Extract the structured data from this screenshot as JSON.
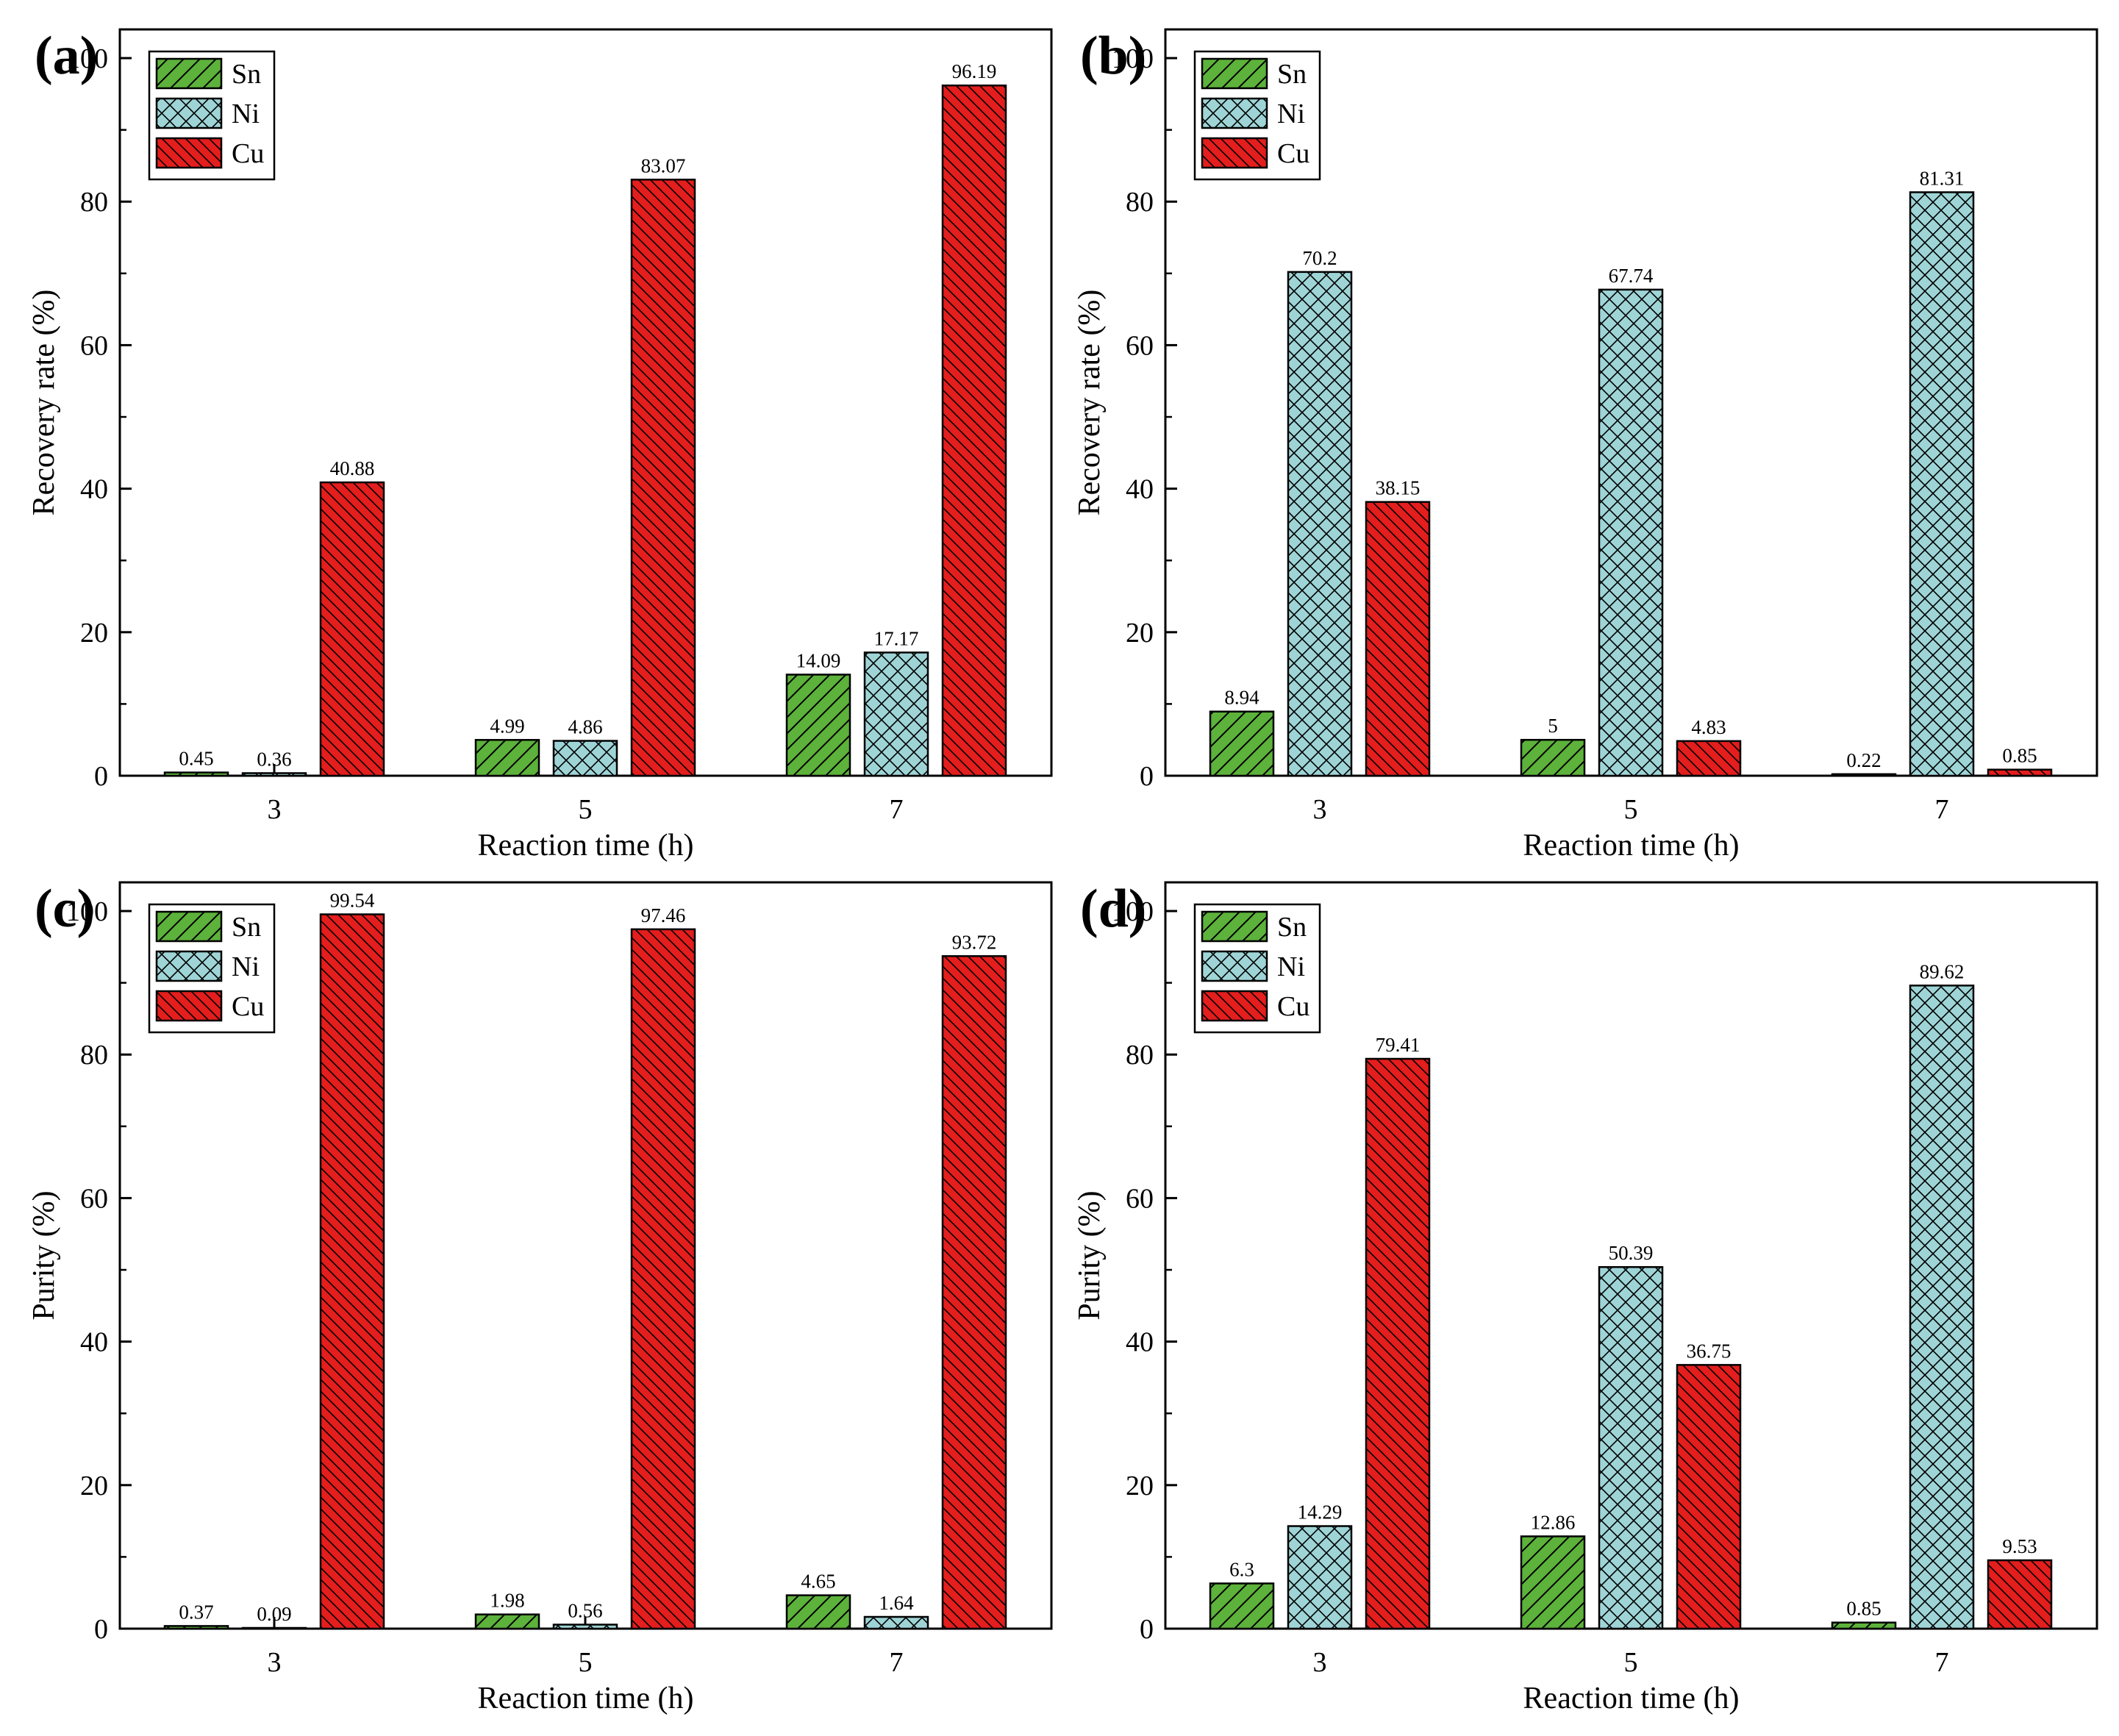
{
  "colors": {
    "Sn": "#5cb23b",
    "Ni": "#9fd4d6",
    "Cu": "#e41d1d",
    "hatch": "#000000"
  },
  "chart_data": [
    {
      "type": "bar",
      "panel_label": "(a)",
      "categories": [
        "3",
        "5",
        "7"
      ],
      "xlabel": "Reaction time (h)",
      "ylabel": "Recovery rate (%)",
      "ylim": [
        0,
        104
      ],
      "yticks": [
        0,
        20,
        40,
        60,
        80,
        100
      ],
      "legend_position": "top-left",
      "series": [
        {
          "name": "Sn",
          "values": [
            0.45,
            4.99,
            14.09
          ],
          "labels": [
            "0.45",
            "4.99",
            "14.09"
          ]
        },
        {
          "name": "Ni",
          "values": [
            0.36,
            4.86,
            17.17
          ],
          "labels": [
            "0.36",
            "4.86",
            "17.17"
          ]
        },
        {
          "name": "Cu",
          "values": [
            40.88,
            83.07,
            96.19
          ],
          "labels": [
            "40.88",
            "83.07",
            "96.19"
          ]
        }
      ]
    },
    {
      "type": "bar",
      "panel_label": "(b)",
      "categories": [
        "3",
        "5",
        "7"
      ],
      "xlabel": "Reaction time (h)",
      "ylabel": "Recovery rate (%)",
      "ylim": [
        0,
        104
      ],
      "yticks": [
        0,
        20,
        40,
        60,
        80,
        100
      ],
      "legend_position": "top-left",
      "series": [
        {
          "name": "Sn",
          "values": [
            8.94,
            5,
            0.22
          ],
          "labels": [
            "8.94",
            "5",
            "0.22"
          ]
        },
        {
          "name": "Ni",
          "values": [
            70.2,
            67.74,
            81.31
          ],
          "labels": [
            "70.2",
            "67.74",
            "81.31"
          ]
        },
        {
          "name": "Cu",
          "values": [
            38.15,
            4.83,
            0.85
          ],
          "labels": [
            "38.15",
            "4.83",
            "0.85"
          ]
        }
      ]
    },
    {
      "type": "bar",
      "panel_label": "(c)",
      "categories": [
        "3",
        "5",
        "7"
      ],
      "xlabel": "Reaction time (h)",
      "ylabel": "Purity (%)",
      "ylim": [
        0,
        104
      ],
      "yticks": [
        0,
        20,
        40,
        60,
        80,
        100
      ],
      "legend_position": "top-left",
      "series": [
        {
          "name": "Sn",
          "values": [
            0.37,
            1.98,
            4.65
          ],
          "labels": [
            "0.37",
            "1.98",
            "4.65"
          ]
        },
        {
          "name": "Ni",
          "values": [
            0.09,
            0.56,
            1.64
          ],
          "labels": [
            "0.09",
            "0.56",
            "1.64"
          ]
        },
        {
          "name": "Cu",
          "values": [
            99.54,
            97.46,
            93.72
          ],
          "labels": [
            "99.54",
            "97.46",
            "93.72"
          ]
        }
      ]
    },
    {
      "type": "bar",
      "panel_label": "(d)",
      "categories": [
        "3",
        "5",
        "7"
      ],
      "xlabel": "Reaction time (h)",
      "ylabel": "Purity (%)",
      "ylim": [
        0,
        104
      ],
      "yticks": [
        0,
        20,
        40,
        60,
        80,
        100
      ],
      "legend_position": "top-left",
      "series": [
        {
          "name": "Sn",
          "values": [
            6.3,
            12.86,
            0.85
          ],
          "labels": [
            "6.3",
            "12.86",
            "0.85"
          ]
        },
        {
          "name": "Ni",
          "values": [
            14.29,
            50.39,
            89.62
          ],
          "labels": [
            "14.29",
            "50.39",
            "89.62"
          ]
        },
        {
          "name": "Cu",
          "values": [
            79.41,
            36.75,
            9.53
          ],
          "labels": [
            "79.41",
            "36.75",
            "9.53"
          ]
        }
      ]
    }
  ]
}
